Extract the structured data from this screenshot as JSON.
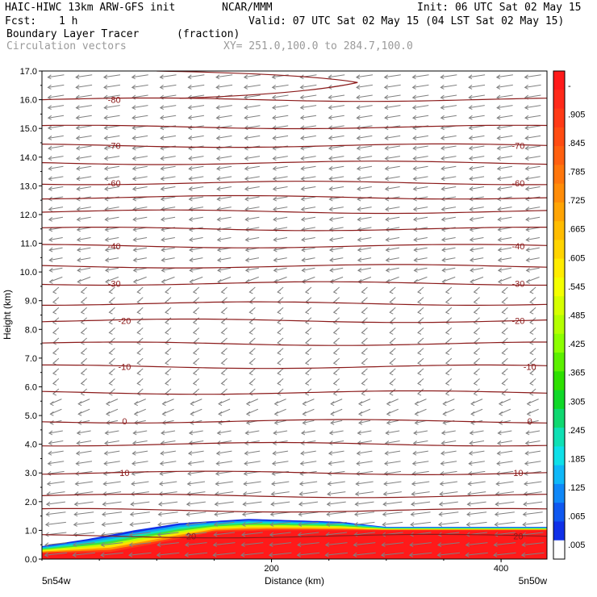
{
  "header": {
    "model": "HAIC-HIWC 13km ARW-GFS init",
    "org": "NCAR/MMM",
    "init": "Init: 06 UTC Sat 02 May 15",
    "fcst_label": "Fcst:",
    "fcst_value": "1 h",
    "valid": "Valid: 07 UTC Sat 02 May 15 (04 LST Sat 02 May 15)",
    "field_name": "Boundary Layer Tracer",
    "field_units": "(fraction)",
    "overlay_name": "Circulation vectors",
    "xy_range": "XY= 251.0,100.0 to 284.7,100.0"
  },
  "axes": {
    "ylabel": "Height (km)",
    "xlabel": "Distance (km)",
    "left_end_label": "5n54w",
    "right_end_label": "5n50w",
    "yticks": [
      "0.0",
      "1.0",
      "2.0",
      "3.0",
      "4.0",
      "5.0",
      "6.0",
      "7.0",
      "8.0",
      "9.0",
      "10.0",
      "11.0",
      "12.0",
      "13.0",
      "14.0",
      "15.0",
      "16.0",
      "17.0"
    ],
    "xticks": [
      "200",
      "400"
    ]
  },
  "chart_data": {
    "type": "heatmap",
    "x_range_km": [
      0,
      440
    ],
    "ylim_km": [
      0,
      17
    ],
    "grid": false,
    "fill_field": "Boundary Layer Tracer (fraction)",
    "colorbar_labels": [
      "-",
      ".905",
      ".845",
      ".785",
      ".725",
      ".665",
      ".605",
      ".545",
      ".485",
      ".425",
      ".365",
      ".305",
      ".245",
      ".185",
      ".125",
      ".065",
      ".005"
    ],
    "colorbar_colors": [
      "#ff1a1a",
      "#ff2a1a",
      "#ff3a16",
      "#ff4c12",
      "#ff6010",
      "#ff760c",
      "#ff8c08",
      "#ffa404",
      "#ffbc00",
      "#ffd400",
      "#ffec00",
      "#f4ff00",
      "#d6ff00",
      "#b4ff00",
      "#8cff00",
      "#5cf000",
      "#2ee000",
      "#10d828",
      "#10d870",
      "#10e0b4",
      "#10e0e8",
      "#10b8f8",
      "#1088f8",
      "#1058f0",
      "#1030e8",
      "#ffffff"
    ],
    "tracer_region": {
      "red_core_top_km": [
        [
          0,
          0.2
        ],
        [
          60,
          0.25
        ],
        [
          100,
          0.55
        ],
        [
          150,
          0.95
        ],
        [
          200,
          1.0
        ],
        [
          300,
          1.0
        ],
        [
          440,
          1.0
        ]
      ],
      "tracer_top_km": [
        [
          0,
          0.45
        ],
        [
          40,
          0.7
        ],
        [
          80,
          1.0
        ],
        [
          120,
          1.25
        ],
        [
          180,
          1.4
        ],
        [
          260,
          1.3
        ],
        [
          300,
          1.12
        ],
        [
          440,
          1.12
        ]
      ]
    },
    "contour_labels": [
      {
        "label": "-80",
        "x_km": 63,
        "height_km": 16.0
      },
      {
        "label": "-70",
        "x_km": 63,
        "height_km": 14.4
      },
      {
        "label": "-70",
        "x_km": 415,
        "height_km": 14.4
      },
      {
        "label": "-60",
        "x_km": 63,
        "height_km": 13.1
      },
      {
        "label": "-60",
        "x_km": 415,
        "height_km": 13.1
      },
      {
        "label": "-40",
        "x_km": 63,
        "height_km": 10.9
      },
      {
        "label": "-40",
        "x_km": 415,
        "height_km": 10.9
      },
      {
        "label": "-30",
        "x_km": 63,
        "height_km": 9.6
      },
      {
        "label": "-30",
        "x_km": 415,
        "height_km": 9.6
      },
      {
        "label": "-20",
        "x_km": 72,
        "height_km": 8.3
      },
      {
        "label": "-20",
        "x_km": 415,
        "height_km": 8.3
      },
      {
        "label": "-10",
        "x_km": 72,
        "height_km": 6.7
      },
      {
        "label": "-10",
        "x_km": 425,
        "height_km": 6.7
      },
      {
        "label": "0",
        "x_km": 72,
        "height_km": 4.8
      },
      {
        "label": "0",
        "x_km": 425,
        "height_km": 4.8
      },
      {
        "label": "10",
        "x_km": 72,
        "height_km": 3.0
      },
      {
        "label": "10",
        "x_km": 415,
        "height_km": 3.0
      },
      {
        "label": "20",
        "x_km": 130,
        "height_km": 0.8
      },
      {
        "label": "20",
        "x_km": 415,
        "height_km": 0.8
      }
    ],
    "contour_heights_km": [
      16.0,
      15.05,
      14.4,
      13.8,
      13.1,
      12.6,
      12.1,
      11.5,
      10.9,
      10.2,
      9.6,
      8.9,
      8.3,
      7.5,
      6.7,
      5.8,
      4.8,
      4.0,
      3.0,
      2.2,
      1.7,
      0.8
    ],
    "wind_vectors": {
      "direction": "westward (toward decreasing distance)",
      "strong_below_km": 4.5,
      "weak_layer_km": [
        5.5,
        9.5
      ],
      "moderate_above_km": 10.0
    }
  }
}
